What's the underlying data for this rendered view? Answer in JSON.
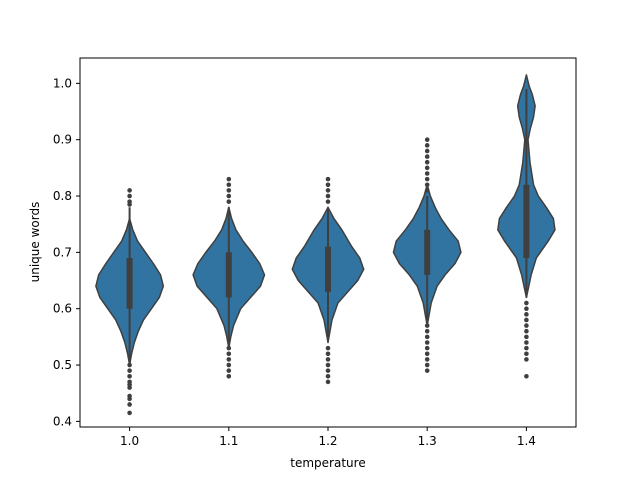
{
  "chart_data": {
    "type": "violin",
    "title": "",
    "xlabel": "temperature",
    "ylabel": "unique words",
    "categories": [
      "1.0",
      "1.1",
      "1.2",
      "1.3",
      "1.4"
    ],
    "ylim": [
      0.39,
      1.045
    ],
    "yticks": [
      0.4,
      0.5,
      0.6,
      0.7,
      0.8,
      0.9,
      1.0
    ],
    "ytick_labels": [
      "0.4",
      "0.5",
      "0.6",
      "0.7",
      "0.8",
      "0.9",
      "1.0"
    ],
    "grid": false,
    "legend": "none",
    "colors": {
      "violin_fill": "#3274a1",
      "outline": "#3f3f3f",
      "box": "#3f3f3f"
    },
    "violins": [
      {
        "category": "1.0",
        "profile": [
          [
            0.5,
            0.0
          ],
          [
            0.52,
            0.05
          ],
          [
            0.54,
            0.12
          ],
          [
            0.56,
            0.22
          ],
          [
            0.58,
            0.35
          ],
          [
            0.6,
            0.55
          ],
          [
            0.62,
            0.75
          ],
          [
            0.64,
            0.85
          ],
          [
            0.66,
            0.78
          ],
          [
            0.68,
            0.6
          ],
          [
            0.7,
            0.4
          ],
          [
            0.72,
            0.2
          ],
          [
            0.74,
            0.08
          ],
          [
            0.76,
            0.0
          ]
        ],
        "whisker": [
          0.5,
          0.78
        ],
        "box": [
          0.6,
          0.69
        ],
        "outliers": [
          0.415,
          0.43,
          0.44,
          0.445,
          0.46,
          0.465,
          0.47,
          0.48,
          0.49,
          0.5,
          0.785,
          0.79,
          0.8,
          0.81
        ]
      },
      {
        "category": "1.1",
        "profile": [
          [
            0.53,
            0.0
          ],
          [
            0.55,
            0.05
          ],
          [
            0.57,
            0.12
          ],
          [
            0.6,
            0.3
          ],
          [
            0.62,
            0.55
          ],
          [
            0.64,
            0.8
          ],
          [
            0.66,
            0.9
          ],
          [
            0.68,
            0.78
          ],
          [
            0.7,
            0.58
          ],
          [
            0.72,
            0.36
          ],
          [
            0.74,
            0.18
          ],
          [
            0.76,
            0.07
          ],
          [
            0.78,
            0.0
          ]
        ],
        "whisker": [
          0.54,
          0.78
        ],
        "box": [
          0.62,
          0.7
        ],
        "outliers": [
          0.48,
          0.49,
          0.5,
          0.51,
          0.52,
          0.53,
          0.79,
          0.8,
          0.81,
          0.82,
          0.83
        ]
      },
      {
        "category": "1.2",
        "profile": [
          [
            0.54,
            0.0
          ],
          [
            0.56,
            0.05
          ],
          [
            0.58,
            0.1
          ],
          [
            0.61,
            0.25
          ],
          [
            0.63,
            0.5
          ],
          [
            0.65,
            0.75
          ],
          [
            0.67,
            0.9
          ],
          [
            0.69,
            0.8
          ],
          [
            0.71,
            0.6
          ],
          [
            0.74,
            0.35
          ],
          [
            0.76,
            0.15
          ],
          [
            0.78,
            0.0
          ]
        ],
        "whisker": [
          0.55,
          0.78
        ],
        "box": [
          0.63,
          0.71
        ],
        "outliers": [
          0.47,
          0.48,
          0.49,
          0.5,
          0.51,
          0.52,
          0.53,
          0.79,
          0.8,
          0.81,
          0.82,
          0.83
        ]
      },
      {
        "category": "1.3",
        "profile": [
          [
            0.57,
            0.0
          ],
          [
            0.59,
            0.05
          ],
          [
            0.61,
            0.1
          ],
          [
            0.64,
            0.25
          ],
          [
            0.66,
            0.45
          ],
          [
            0.68,
            0.7
          ],
          [
            0.7,
            0.85
          ],
          [
            0.72,
            0.78
          ],
          [
            0.74,
            0.55
          ],
          [
            0.76,
            0.35
          ],
          [
            0.78,
            0.2
          ],
          [
            0.8,
            0.08
          ],
          [
            0.82,
            0.0
          ]
        ],
        "whisker": [
          0.58,
          0.8
        ],
        "box": [
          0.66,
          0.74
        ],
        "outliers": [
          0.49,
          0.5,
          0.51,
          0.52,
          0.53,
          0.54,
          0.55,
          0.56,
          0.57,
          0.81,
          0.82,
          0.83,
          0.84,
          0.85,
          0.86,
          0.87,
          0.88,
          0.89,
          0.9
        ]
      },
      {
        "category": "1.4",
        "profile": [
          [
            0.62,
            0.0
          ],
          [
            0.64,
            0.06
          ],
          [
            0.66,
            0.12
          ],
          [
            0.69,
            0.25
          ],
          [
            0.72,
            0.55
          ],
          [
            0.74,
            0.72
          ],
          [
            0.76,
            0.68
          ],
          [
            0.78,
            0.5
          ],
          [
            0.8,
            0.3
          ],
          [
            0.82,
            0.18
          ],
          [
            0.86,
            0.09
          ],
          [
            0.9,
            0.04
          ],
          [
            0.92,
            0.1
          ],
          [
            0.94,
            0.18
          ],
          [
            0.96,
            0.22
          ],
          [
            0.98,
            0.15
          ],
          [
            0.995,
            0.07
          ],
          [
            1.015,
            0.0
          ]
        ],
        "whisker": [
          0.62,
          0.99
        ],
        "box": [
          0.69,
          0.82
        ],
        "outliers": [
          0.48,
          0.51,
          0.52,
          0.53,
          0.54,
          0.55,
          0.56,
          0.57,
          0.58,
          0.59,
          0.6,
          0.61
        ]
      }
    ]
  }
}
